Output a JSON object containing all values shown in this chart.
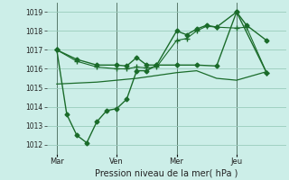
{
  "background_color": "#cceee8",
  "grid_color": "#99ccbb",
  "line_color": "#1a6b2a",
  "title": "Pression niveau de la mer( hPa )",
  "ylim": [
    1011.5,
    1019.5
  ],
  "yticks": [
    1012,
    1013,
    1014,
    1015,
    1016,
    1017,
    1018,
    1019
  ],
  "day_labels": [
    "Mar",
    "Ven",
    "Mer",
    "Jeu"
  ],
  "day_positions": [
    0,
    3,
    6,
    9
  ],
  "xlim": [
    -0.5,
    11.5
  ],
  "series": [
    {
      "x": [
        0,
        1,
        2,
        3,
        3.5,
        4,
        4.5,
        5,
        6,
        6.5,
        7,
        7.5,
        8,
        9,
        9.5,
        10.5
      ],
      "y": [
        1017.0,
        1016.5,
        1016.2,
        1016.2,
        1016.15,
        1016.6,
        1016.2,
        1016.2,
        1018.0,
        1017.8,
        1018.1,
        1018.3,
        1018.2,
        1019.0,
        1018.3,
        1017.5
      ],
      "marker": "D",
      "markersize": 2.5,
      "linewidth": 1.0
    },
    {
      "x": [
        0,
        1,
        2,
        3,
        3.5,
        4,
        4.5,
        5,
        6,
        6.5,
        7,
        7.5,
        8,
        9,
        9.5,
        10.5
      ],
      "y": [
        1017.0,
        1016.4,
        1016.1,
        1016.0,
        1016.0,
        1016.1,
        1016.05,
        1016.1,
        1017.5,
        1017.6,
        1018.0,
        1018.25,
        1018.2,
        1018.15,
        1018.2,
        1015.8
      ],
      "marker": "+",
      "markersize": 4,
      "linewidth": 0.8
    },
    {
      "x": [
        0,
        1,
        2,
        3,
        4,
        5,
        6,
        7,
        8,
        9,
        10.5
      ],
      "y": [
        1015.2,
        1015.25,
        1015.3,
        1015.4,
        1015.5,
        1015.65,
        1015.8,
        1015.9,
        1015.5,
        1015.4,
        1015.85
      ],
      "marker": null,
      "markersize": 0,
      "linewidth": 0.9
    },
    {
      "x": [
        0,
        0.5,
        1,
        1.5,
        2,
        2.5,
        3,
        3.5,
        4,
        4.5,
        5,
        6,
        7,
        8,
        9,
        10.5
      ],
      "y": [
        1017.0,
        1013.6,
        1012.5,
        1012.1,
        1013.2,
        1013.8,
        1013.9,
        1014.4,
        1015.9,
        1015.9,
        1016.2,
        1016.2,
        1016.2,
        1016.15,
        1019.0,
        1015.8
      ],
      "marker": "D",
      "markersize": 2.5,
      "linewidth": 1.0
    }
  ],
  "vline_positions": [
    0,
    3,
    6,
    9
  ],
  "vline_color": "#446655",
  "vline_linewidth": 0.6
}
